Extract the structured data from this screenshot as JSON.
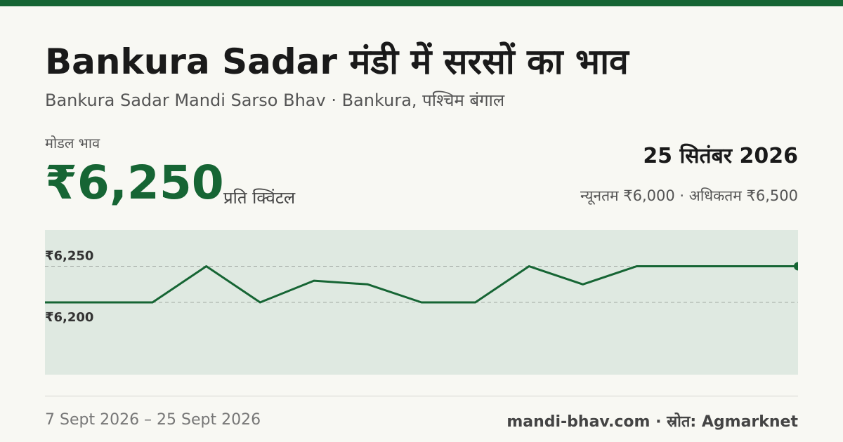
{
  "header": {
    "title": "Bankura Sadar मंडी में सरसों का भाव",
    "subtitle": "Bankura Sadar Mandi Sarso Bhav · Bankura, पश्चिम बंगाल"
  },
  "price_block": {
    "label": "मोडल भाव",
    "value": "₹6,250",
    "unit": "प्रति क्विंटल"
  },
  "date_block": {
    "date": "25 सितंबर 2026",
    "range": "न्यूनतम ₹6,000 · अधिकतम ₹6,500"
  },
  "footer": {
    "period": "7 Sept 2026 – 25 Sept 2026",
    "source": "mandi-bhav.com · स्रोत: Agmarknet"
  },
  "colors": {
    "accent": "#166534",
    "chart_bg": "#dfe9e1",
    "page_bg": "#f8f8f3"
  },
  "chart_data": {
    "type": "line",
    "x": [
      "7 Sept 2026",
      "",
      "",
      "",
      "",
      "",
      "",
      "",
      "",
      "",
      "",
      "",
      "",
      "",
      "25 Sept 2026"
    ],
    "series": [
      {
        "values": [
          6200,
          6200,
          6200,
          6250,
          6200,
          6230,
          6225,
          6200,
          6200,
          6250,
          6225,
          6250,
          6250,
          6250,
          6250
        ]
      }
    ],
    "ylim": [
      6100,
      6300
    ],
    "reference_lines": [
      {
        "value": 6250,
        "label": "₹6,250"
      },
      {
        "value": 6200,
        "label": "₹6,200"
      }
    ],
    "grid": false,
    "legend": "none",
    "title": "",
    "xlabel": "",
    "ylabel": ""
  }
}
